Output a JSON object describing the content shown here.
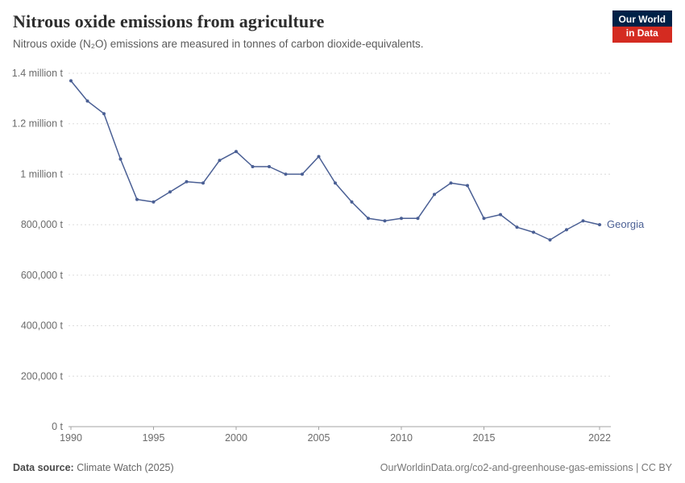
{
  "header": {
    "title": "Nitrous oxide emissions from agriculture",
    "subtitle": "Nitrous oxide (N₂O) emissions are measured in tonnes of carbon dioxide-equivalents.",
    "logo": {
      "line1": "Our World",
      "line2": "in Data",
      "navy": "#002147",
      "red": "#d42b21"
    }
  },
  "chart_data": {
    "type": "line",
    "title": "Nitrous oxide emissions from agriculture",
    "xlabel": "",
    "ylabel": "tonnes of carbon dioxide-equivalents",
    "xlim": [
      1990,
      2022
    ],
    "ylim": [
      0,
      1400000
    ],
    "grid": "horizontal-dashed",
    "legend_position": "end-of-line-label",
    "x_ticks": [
      1990,
      1995,
      2000,
      2005,
      2010,
      2015,
      2022
    ],
    "y_ticks": [
      {
        "value": 0,
        "label": "0 t"
      },
      {
        "value": 200000,
        "label": "200,000 t"
      },
      {
        "value": 400000,
        "label": "400,000 t"
      },
      {
        "value": 600000,
        "label": "600,000 t"
      },
      {
        "value": 800000,
        "label": "800,000 t"
      },
      {
        "value": 1000000,
        "label": "1 million t"
      },
      {
        "value": 1200000,
        "label": "1.2 million t"
      },
      {
        "value": 1400000,
        "label": "1.4 million t"
      }
    ],
    "series": [
      {
        "name": "Georgia",
        "color": "#4a5f94",
        "x": [
          1990,
          1991,
          1992,
          1993,
          1994,
          1995,
          1996,
          1997,
          1998,
          1999,
          2000,
          2001,
          2002,
          2003,
          2004,
          2005,
          2006,
          2007,
          2008,
          2009,
          2010,
          2011,
          2012,
          2013,
          2014,
          2015,
          2016,
          2017,
          2018,
          2019,
          2020,
          2021,
          2022
        ],
        "values": [
          1370000,
          1290000,
          1240000,
          1060000,
          900000,
          890000,
          930000,
          970000,
          965000,
          1055000,
          1090000,
          1030000,
          1030000,
          1000000,
          1000000,
          1070000,
          965000,
          890000,
          825000,
          815000,
          825000,
          825000,
          920000,
          965000,
          955000,
          825000,
          840000,
          790000,
          770000,
          740000,
          780000,
          815000,
          800000
        ]
      }
    ]
  },
  "footer": {
    "source_label": "Data source:",
    "source": "Climate Watch (2025)",
    "credit": "OurWorldinData.org/co2-and-greenhouse-gas-emissions | CC BY"
  }
}
